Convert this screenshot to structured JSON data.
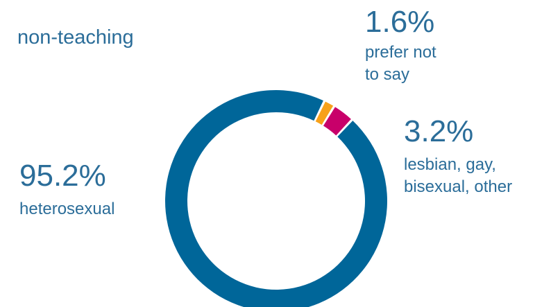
{
  "title": "non-teaching",
  "chart_data": {
    "type": "pie",
    "title": "non-teaching",
    "slices": [
      {
        "label": "heterosexual",
        "value": 95.2,
        "value_label": "95.2%",
        "color": "#006699"
      },
      {
        "label": "prefer not\nto say",
        "value": 1.6,
        "value_label": "1.6%",
        "color": "#f7a11a"
      },
      {
        "label": "lesbian, gay,\nbisexual, other",
        "value": 3.2,
        "value_label": "3.2%",
        "color": "#c8006a"
      }
    ],
    "start_angle_deg": 43,
    "direction": "clockwise"
  }
}
